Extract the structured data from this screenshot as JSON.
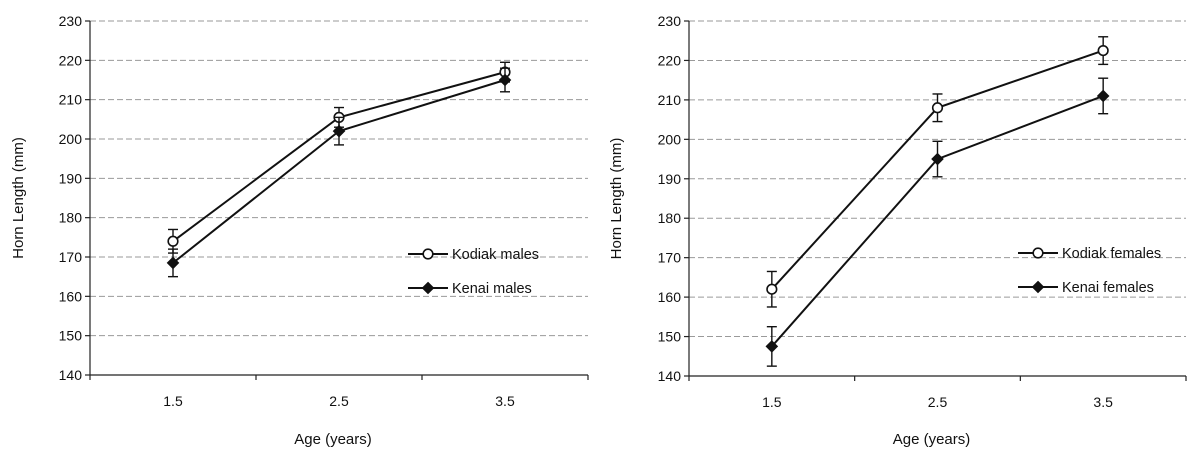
{
  "chart_data": [
    {
      "type": "line",
      "title": "",
      "xlabel": "Age (years)",
      "ylabel": "Horn Length (mm)",
      "categories": [
        "1.5",
        "2.5",
        "3.5"
      ],
      "ylim": [
        140,
        230
      ],
      "yticks": [
        140,
        150,
        160,
        170,
        180,
        190,
        200,
        210,
        220,
        230
      ],
      "grid": true,
      "legend_position": "lower-right",
      "series": [
        {
          "name": "Kodiak males",
          "marker": "open-circle",
          "values": [
            174,
            205.5,
            217
          ],
          "errors": [
            3,
            2.5,
            2.5
          ]
        },
        {
          "name": "Kenai males",
          "marker": "filled-diamond",
          "values": [
            168.5,
            202,
            215
          ],
          "errors": [
            3.5,
            3.5,
            3
          ]
        }
      ]
    },
    {
      "type": "line",
      "title": "",
      "xlabel": "Age (years)",
      "ylabel": "Horn Length (mm)",
      "categories": [
        "1.5",
        "2.5",
        "3.5"
      ],
      "ylim": [
        140,
        230
      ],
      "yticks": [
        140,
        150,
        160,
        170,
        180,
        190,
        200,
        210,
        220,
        230
      ],
      "grid": true,
      "legend_position": "lower-right",
      "series": [
        {
          "name": "Kodiak females",
          "marker": "open-circle",
          "values": [
            162,
            208,
            222.5
          ],
          "errors": [
            4.5,
            3.5,
            3.5
          ]
        },
        {
          "name": "Kenai females",
          "marker": "filled-diamond",
          "values": [
            147.5,
            195,
            211
          ],
          "errors": [
            5,
            4.5,
            4.5
          ]
        }
      ]
    }
  ]
}
